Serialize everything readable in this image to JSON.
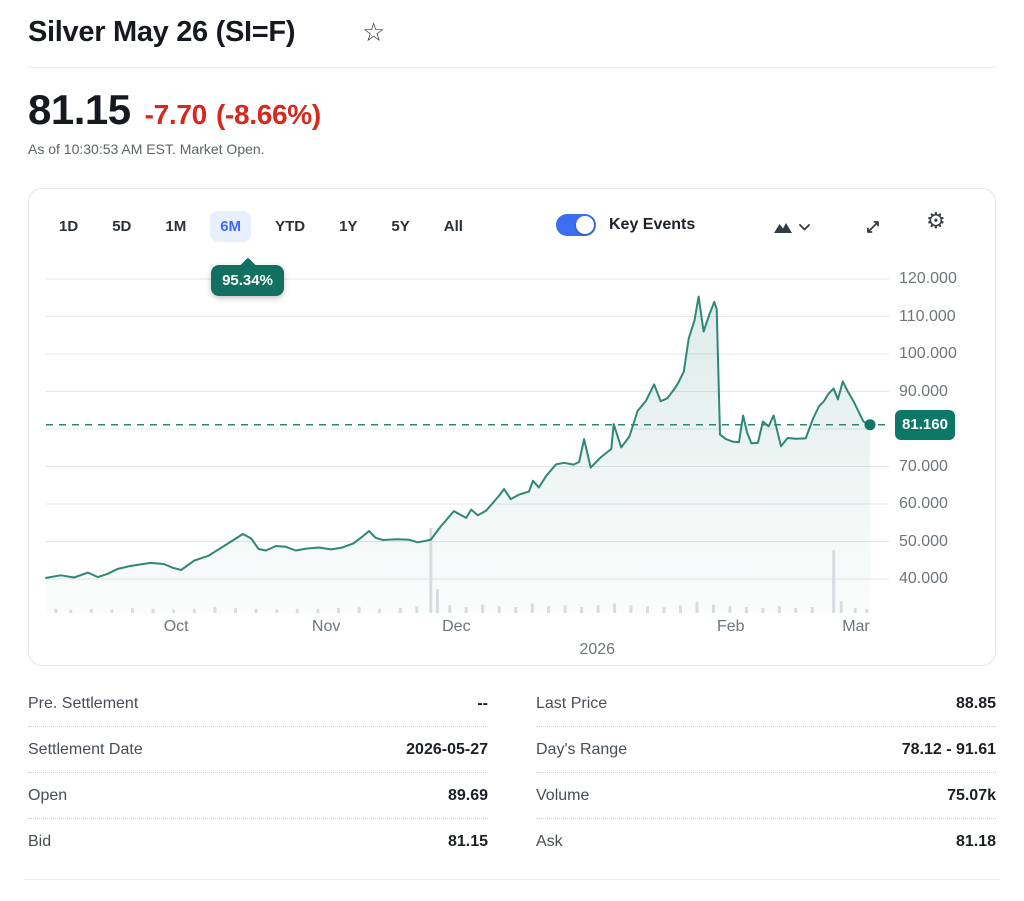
{
  "header": {
    "title": "Silver May 26 (SI=F)",
    "star_icon": "☆"
  },
  "quote": {
    "price": "81.15",
    "change": "-7.70",
    "change_pct": "(-8.66%)",
    "change_color": "#d5291f",
    "as_of": "As of 10:30:53 AM EST. Market Open."
  },
  "toolbar": {
    "ranges": [
      {
        "label": "1D",
        "active": false
      },
      {
        "label": "5D",
        "active": false
      },
      {
        "label": "1M",
        "active": false
      },
      {
        "label": "6M",
        "active": true
      },
      {
        "label": "YTD",
        "active": false
      },
      {
        "label": "1Y",
        "active": false
      },
      {
        "label": "5Y",
        "active": false
      },
      {
        "label": "All",
        "active": false
      }
    ],
    "active_color": "#3d6bf5",
    "key_events_label": "Key Events",
    "key_events_on": true,
    "toggle_color": "#3b6ff0",
    "gear_icon": "⚙"
  },
  "tooltip": {
    "text": "95.34%"
  },
  "chart_data": {
    "type": "area",
    "symbol": "SI=F",
    "period": "6M",
    "period_gain_pct": "95.34%",
    "current_price": 81.16,
    "current_price_label": "81.160",
    "ylim": [
      30.9,
      121.5
    ],
    "grid": true,
    "y_ticks": [
      {
        "value": 120,
        "label": "120.000"
      },
      {
        "value": 110,
        "label": "110.000"
      },
      {
        "value": 100,
        "label": "100.000"
      },
      {
        "value": 90,
        "label": "90.000"
      },
      {
        "value": 80,
        "label": "80.000"
      },
      {
        "value": 70,
        "label": "70.000"
      },
      {
        "value": 60,
        "label": "60.000"
      },
      {
        "value": 50,
        "label": "50.000"
      },
      {
        "value": 40,
        "label": "40.000"
      }
    ],
    "x_ticks": [
      {
        "t": 0.158,
        "label": "Oct"
      },
      {
        "t": 0.34,
        "label": "Nov"
      },
      {
        "t": 0.498,
        "label": "Dec"
      },
      {
        "t": 0.831,
        "label": "Feb"
      },
      {
        "t": 0.983,
        "label": "Mar"
      }
    ],
    "year_tick": {
      "t": 0.669,
      "label": "2026"
    },
    "series": [
      {
        "name": "SI=F price",
        "points": [
          [
            0.0,
            40.3
          ],
          [
            0.018,
            41.0
          ],
          [
            0.034,
            40.4
          ],
          [
            0.051,
            41.7
          ],
          [
            0.063,
            40.5
          ],
          [
            0.075,
            41.4
          ],
          [
            0.087,
            42.7
          ],
          [
            0.103,
            43.5
          ],
          [
            0.127,
            44.3
          ],
          [
            0.143,
            44.0
          ],
          [
            0.154,
            43.0
          ],
          [
            0.164,
            42.4
          ],
          [
            0.18,
            44.9
          ],
          [
            0.197,
            46.2
          ],
          [
            0.216,
            48.8
          ],
          [
            0.239,
            52.0
          ],
          [
            0.249,
            50.8
          ],
          [
            0.258,
            48.0
          ],
          [
            0.267,
            47.6
          ],
          [
            0.279,
            48.8
          ],
          [
            0.291,
            48.6
          ],
          [
            0.303,
            47.6
          ],
          [
            0.316,
            48.1
          ],
          [
            0.331,
            48.4
          ],
          [
            0.346,
            47.9
          ],
          [
            0.358,
            48.3
          ],
          [
            0.373,
            49.5
          ],
          [
            0.385,
            51.5
          ],
          [
            0.392,
            52.8
          ],
          [
            0.4,
            51.0
          ],
          [
            0.409,
            50.4
          ],
          [
            0.425,
            50.6
          ],
          [
            0.44,
            50.5
          ],
          [
            0.451,
            49.8
          ],
          [
            0.461,
            50.2
          ],
          [
            0.467,
            50.5
          ],
          [
            0.479,
            54.0
          ],
          [
            0.495,
            58.1
          ],
          [
            0.504,
            57.0
          ],
          [
            0.51,
            56.3
          ],
          [
            0.516,
            58.5
          ],
          [
            0.524,
            57.0
          ],
          [
            0.534,
            58.2
          ],
          [
            0.549,
            62.0
          ],
          [
            0.556,
            64.0
          ],
          [
            0.564,
            61.3
          ],
          [
            0.574,
            62.5
          ],
          [
            0.586,
            63.3
          ],
          [
            0.591,
            66.2
          ],
          [
            0.598,
            64.4
          ],
          [
            0.607,
            67.5
          ],
          [
            0.619,
            70.6
          ],
          [
            0.629,
            71.0
          ],
          [
            0.64,
            70.5
          ],
          [
            0.647,
            71.2
          ],
          [
            0.653,
            77.3
          ],
          [
            0.661,
            69.7
          ],
          [
            0.673,
            72.4
          ],
          [
            0.686,
            74.7
          ],
          [
            0.689,
            81.3
          ],
          [
            0.698,
            75.1
          ],
          [
            0.708,
            78.0
          ],
          [
            0.718,
            84.8
          ],
          [
            0.728,
            87.5
          ],
          [
            0.738,
            91.9
          ],
          [
            0.746,
            87.4
          ],
          [
            0.754,
            88.2
          ],
          [
            0.762,
            90.5
          ],
          [
            0.767,
            92.2
          ],
          [
            0.774,
            95.3
          ],
          [
            0.78,
            104.1
          ],
          [
            0.787,
            109.0
          ],
          [
            0.792,
            115.3
          ],
          [
            0.798,
            106.0
          ],
          [
            0.805,
            110.5
          ],
          [
            0.811,
            113.9
          ],
          [
            0.814,
            112.0
          ],
          [
            0.818,
            78.5
          ],
          [
            0.825,
            77.3
          ],
          [
            0.834,
            76.6
          ],
          [
            0.841,
            76.5
          ],
          [
            0.846,
            83.6
          ],
          [
            0.851,
            79.0
          ],
          [
            0.856,
            76.2
          ],
          [
            0.864,
            76.3
          ],
          [
            0.87,
            82.0
          ],
          [
            0.877,
            80.7
          ],
          [
            0.883,
            83.6
          ],
          [
            0.888,
            79.0
          ],
          [
            0.892,
            75.4
          ],
          [
            0.9,
            77.6
          ],
          [
            0.91,
            77.4
          ],
          [
            0.922,
            77.5
          ],
          [
            0.931,
            82.8
          ],
          [
            0.938,
            86.0
          ],
          [
            0.944,
            87.4
          ],
          [
            0.95,
            89.5
          ],
          [
            0.956,
            90.8
          ],
          [
            0.961,
            87.9
          ],
          [
            0.967,
            92.7
          ],
          [
            0.973,
            90.0
          ],
          [
            0.98,
            87.4
          ],
          [
            0.986,
            84.7
          ],
          [
            0.992,
            82.0
          ],
          [
            1.0,
            81.16
          ]
        ]
      }
    ],
    "volume_relative": [
      [
        0.012,
        0.05
      ],
      [
        0.03,
        0.04
      ],
      [
        0.055,
        0.05
      ],
      [
        0.08,
        0.04
      ],
      [
        0.105,
        0.06
      ],
      [
        0.13,
        0.05
      ],
      [
        0.155,
        0.04
      ],
      [
        0.18,
        0.05
      ],
      [
        0.205,
        0.07
      ],
      [
        0.23,
        0.06
      ],
      [
        0.255,
        0.05
      ],
      [
        0.28,
        0.04
      ],
      [
        0.305,
        0.05
      ],
      [
        0.33,
        0.05
      ],
      [
        0.355,
        0.06
      ],
      [
        0.38,
        0.07
      ],
      [
        0.405,
        0.05
      ],
      [
        0.43,
        0.06
      ],
      [
        0.45,
        0.08
      ],
      [
        0.467,
        1.0
      ],
      [
        0.475,
        0.28
      ],
      [
        0.49,
        0.09
      ],
      [
        0.51,
        0.07
      ],
      [
        0.53,
        0.1
      ],
      [
        0.55,
        0.08
      ],
      [
        0.57,
        0.07
      ],
      [
        0.59,
        0.11
      ],
      [
        0.61,
        0.08
      ],
      [
        0.63,
        0.09
      ],
      [
        0.65,
        0.07
      ],
      [
        0.67,
        0.09
      ],
      [
        0.69,
        0.11
      ],
      [
        0.71,
        0.09
      ],
      [
        0.73,
        0.08
      ],
      [
        0.75,
        0.07
      ],
      [
        0.77,
        0.09
      ],
      [
        0.79,
        0.13
      ],
      [
        0.81,
        0.1
      ],
      [
        0.83,
        0.08
      ],
      [
        0.85,
        0.07
      ],
      [
        0.87,
        0.06
      ],
      [
        0.89,
        0.08
      ],
      [
        0.91,
        0.06
      ],
      [
        0.93,
        0.07
      ],
      [
        0.956,
        0.74
      ],
      [
        0.965,
        0.14
      ],
      [
        0.982,
        0.06
      ],
      [
        0.996,
        0.05
      ]
    ],
    "colors": {
      "line": "#2f8775",
      "fill_top": "rgba(47,135,117,0.16)",
      "fill_bottom": "rgba(47,135,117,0.02)",
      "marker": "#0d7768",
      "dashed": "#2e8573",
      "grid": "#e3e7ea",
      "volume": "#d7dce0"
    }
  },
  "stats": {
    "left": [
      {
        "label": "Pre. Settlement",
        "value": "--"
      },
      {
        "label": "Settlement Date",
        "value": "2026-05-27"
      },
      {
        "label": "Open",
        "value": "89.69"
      },
      {
        "label": "Bid",
        "value": "81.15"
      }
    ],
    "right": [
      {
        "label": "Last Price",
        "value": "88.85"
      },
      {
        "label": "Day's Range",
        "value": "78.12 - 91.61"
      },
      {
        "label": "Volume",
        "value": "75.07k"
      },
      {
        "label": "Ask",
        "value": "81.18"
      }
    ]
  }
}
